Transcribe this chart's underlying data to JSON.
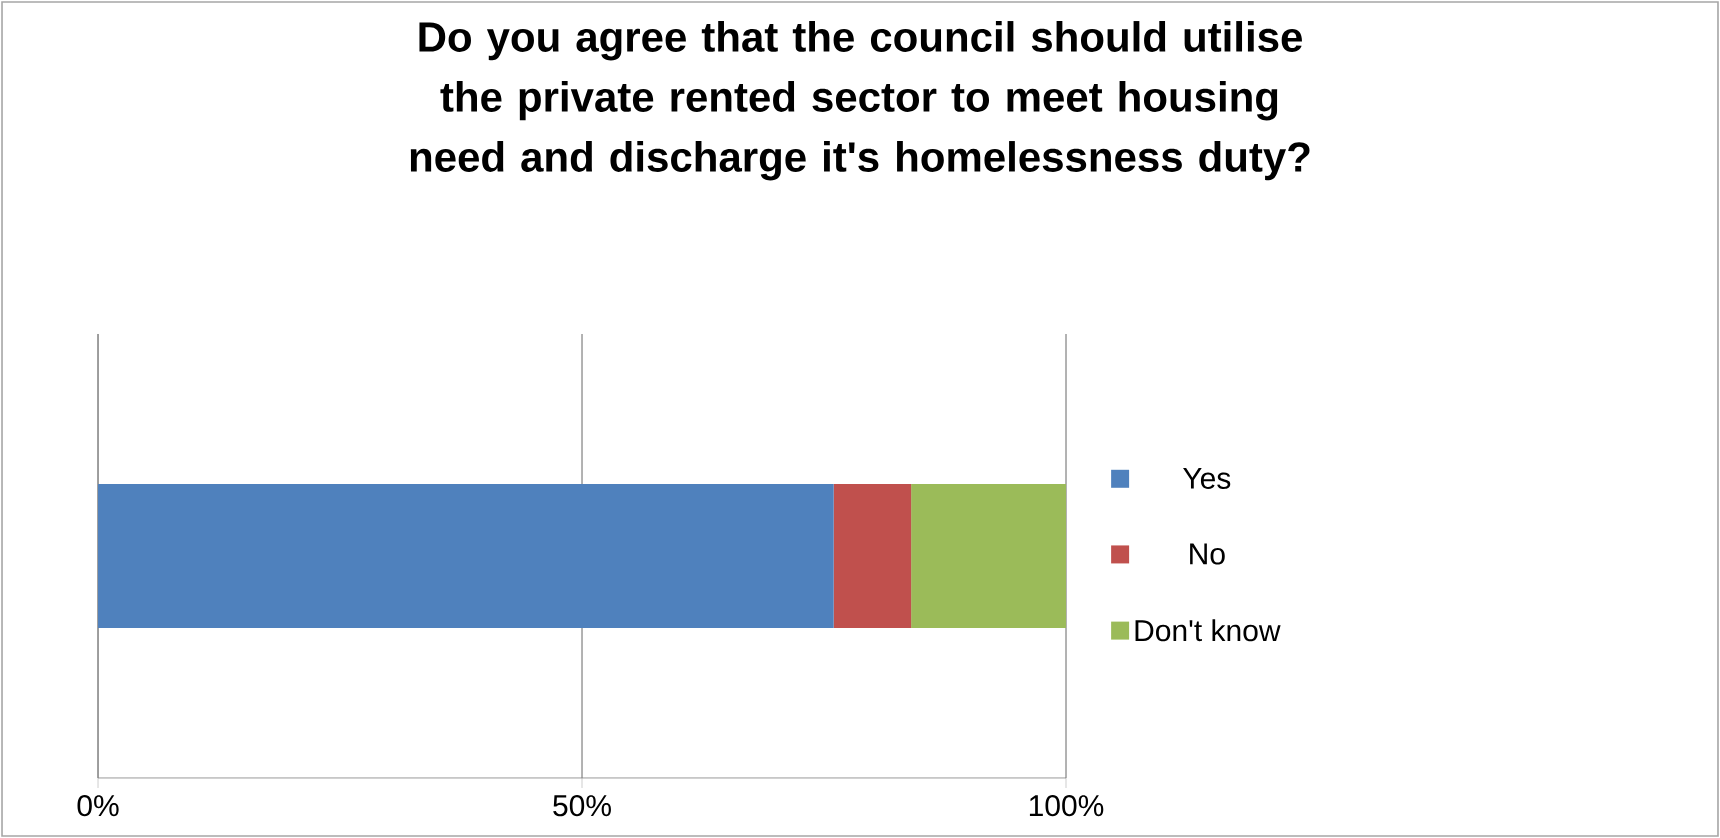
{
  "chart_data": {
    "type": "bar",
    "orientation": "horizontal",
    "stacked": true,
    "title": "Do you agree that the council should utilise the private rented sector to meet housing need and discharge it's homelessness duty?",
    "categories": [
      null
    ],
    "series": [
      {
        "name": "Yes",
        "color": "#4f81bd",
        "values": [
          76
        ]
      },
      {
        "name": "No",
        "color": "#c0504d",
        "values": [
          8
        ]
      },
      {
        "name": "Don't know",
        "color": "#9bbb59",
        "values": [
          16
        ]
      }
    ],
    "xlim": [
      0,
      100
    ],
    "xticks": [
      {
        "value": 0,
        "label": "0%"
      },
      {
        "value": 50,
        "label": "50%"
      },
      {
        "value": 100,
        "label": "100%"
      }
    ],
    "grid": "x",
    "legend": "right"
  }
}
